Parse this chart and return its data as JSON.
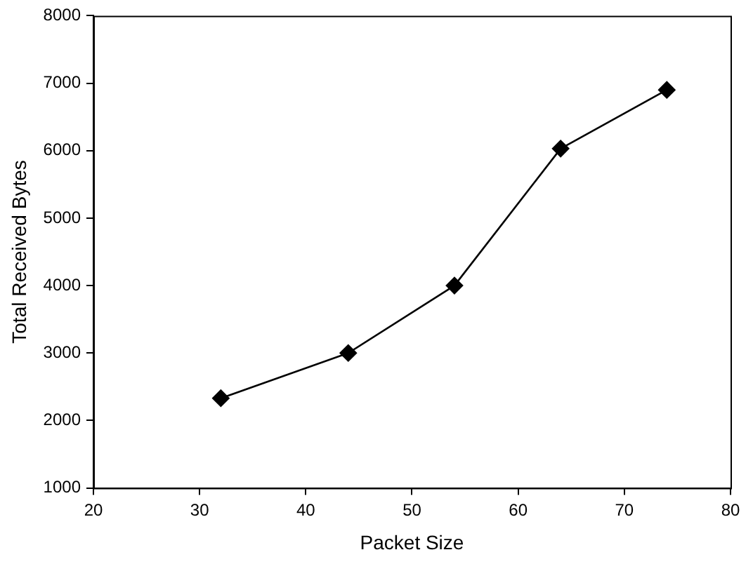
{
  "chart_data": {
    "type": "line",
    "xlabel": "Packet Size",
    "ylabel": "Total Received Bytes",
    "x": [
      32,
      44,
      54,
      64,
      74
    ],
    "series": [
      {
        "color": "#000000",
        "values": [
          2330,
          3000,
          4000,
          6030,
          6900
        ]
      }
    ],
    "xlim": [
      20,
      80
    ],
    "ylim": [
      1000,
      8000
    ],
    "xticks": [
      20,
      30,
      40,
      50,
      60,
      70,
      80
    ],
    "yticks": [
      1000,
      2000,
      3000,
      4000,
      5000,
      6000,
      7000,
      8000
    ],
    "marker": "diamond",
    "line_style": "solid"
  }
}
